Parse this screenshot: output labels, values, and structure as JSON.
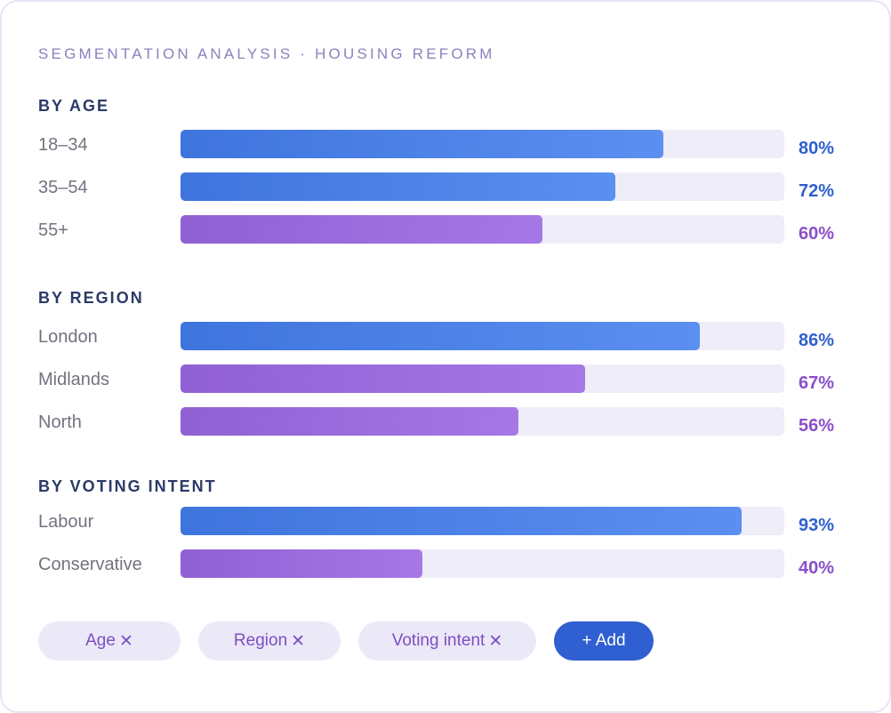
{
  "header": {
    "title": "Segmentation Analysis · Housing Reform"
  },
  "colors": {
    "blue": "#3f74dd",
    "purple": "#9060d4",
    "track": "#efedf8"
  },
  "chart_data": {
    "type": "bar",
    "orientation": "horizontal",
    "xlim": [
      0,
      100
    ],
    "unit": "%",
    "groups": [
      {
        "title": "By Age",
        "items": [
          {
            "label": "18–34",
            "value": 80,
            "display": "80%",
            "color": "blue"
          },
          {
            "label": "35–54",
            "value": 72,
            "display": "72%",
            "color": "blue"
          },
          {
            "label": "55+",
            "value": 60,
            "display": "60%",
            "color": "purple"
          }
        ]
      },
      {
        "title": "By Region",
        "items": [
          {
            "label": "London",
            "value": 86,
            "display": "86%",
            "color": "blue"
          },
          {
            "label": "Midlands",
            "value": 67,
            "display": "67%",
            "color": "purple"
          },
          {
            "label": "North",
            "value": 56,
            "display": "56%",
            "color": "purple"
          }
        ]
      },
      {
        "title": "By Voting Intent",
        "items": [
          {
            "label": "Labour",
            "value": 93,
            "display": "93%",
            "color": "blue"
          },
          {
            "label": "Conservative",
            "value": 40,
            "display": "40%",
            "color": "purple"
          }
        ]
      }
    ]
  },
  "filters": {
    "chips": [
      {
        "label": "Age",
        "close": "✕"
      },
      {
        "label": "Region",
        "close": "✕"
      },
      {
        "label": "Voting intent",
        "close": "✕"
      }
    ],
    "add_label": "+ Add"
  }
}
